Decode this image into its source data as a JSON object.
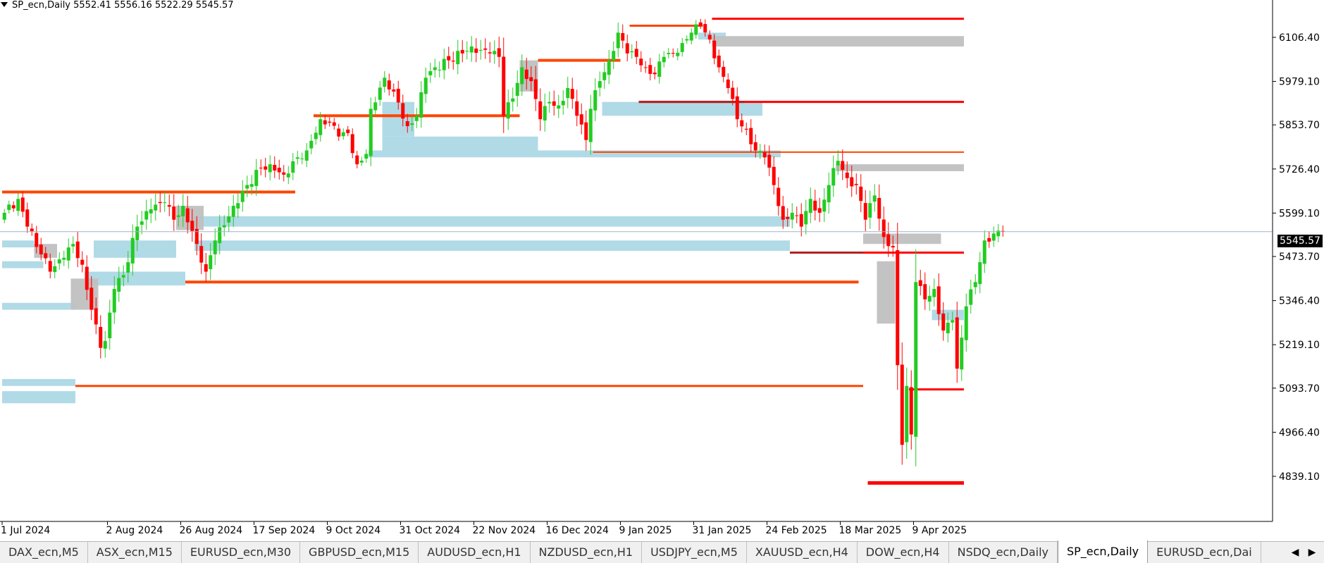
{
  "title_bar": {
    "text": "SP_ecn,Daily  5552.41 5556.16 5522.29 5545.57"
  },
  "current_price": {
    "label": "5545.57",
    "value": 5545.57
  },
  "colors": {
    "bull": "#22cc22",
    "bear": "#ff0000",
    "demand_zone": "#add8e6",
    "neutral_zone": "#c0c0c0",
    "level_orange": "#ff4500",
    "level_red": "#ff0000",
    "level_darkred": "#b22222",
    "price_line": "#a0b4c8",
    "grid_axis": "#000000"
  },
  "chart_data": {
    "type": "candlestick",
    "y_axis_ticks": [
      "6106.40",
      "5979.10",
      "5853.70",
      "5726.40",
      "5599.10",
      "5473.70",
      "5346.40",
      "5219.10",
      "5093.70",
      "4966.40",
      "4839.10"
    ],
    "ylim": [
      4800,
      6180
    ],
    "x_axis_ticks": [
      {
        "label": "1 Jul 2024",
        "index": 0
      },
      {
        "label": "2 Aug 2024",
        "index": 23
      },
      {
        "label": "26 Aug 2024",
        "index": 39
      },
      {
        "label": "17 Sep 2024",
        "index": 55
      },
      {
        "label": "9 Oct 2024",
        "index": 71
      },
      {
        "label": "31 Oct 2024",
        "index": 87
      },
      {
        "label": "22 Nov 2024",
        "index": 103
      },
      {
        "label": "16 Dec 2024",
        "index": 119
      },
      {
        "label": "9 Jan 2025",
        "index": 135
      },
      {
        "label": "31 Jan 2025",
        "index": 151
      },
      {
        "label": "24 Feb 2025",
        "index": 167
      },
      {
        "label": "18 Mar 2025",
        "index": 183
      },
      {
        "label": "9 Apr 2025",
        "index": 199
      }
    ],
    "total_bars": 225,
    "close_anchors": [
      [
        0,
        5600
      ],
      [
        3,
        5640
      ],
      [
        5,
        5560
      ],
      [
        8,
        5480
      ],
      [
        10,
        5430
      ],
      [
        13,
        5470
      ],
      [
        15,
        5510
      ],
      [
        17,
        5450
      ],
      [
        19,
        5320
      ],
      [
        21,
        5210
      ],
      [
        22,
        5230
      ],
      [
        24,
        5380
      ],
      [
        26,
        5420
      ],
      [
        29,
        5560
      ],
      [
        32,
        5610
      ],
      [
        35,
        5630
      ],
      [
        37,
        5580
      ],
      [
        39,
        5620
      ],
      [
        42,
        5510
      ],
      [
        44,
        5430
      ],
      [
        46,
        5520
      ],
      [
        50,
        5620
      ],
      [
        53,
        5680
      ],
      [
        56,
        5730
      ],
      [
        58,
        5740
      ],
      [
        61,
        5710
      ],
      [
        64,
        5760
      ],
      [
        66,
        5780
      ],
      [
        69,
        5870
      ],
      [
        71,
        5860
      ],
      [
        73,
        5820
      ],
      [
        75,
        5830
      ],
      [
        77,
        5740
      ],
      [
        79,
        5770
      ],
      [
        80,
        5900
      ],
      [
        83,
        5990
      ],
      [
        85,
        5950
      ],
      [
        88,
        5850
      ],
      [
        90,
        5880
      ],
      [
        92,
        5990
      ],
      [
        94,
        6020
      ],
      [
        97,
        6040
      ],
      [
        100,
        6060
      ],
      [
        102,
        6080
      ],
      [
        104,
        6070
      ],
      [
        106,
        6060
      ],
      [
        108,
        6050
      ],
      [
        109,
        5880
      ],
      [
        111,
        5930
      ],
      [
        113,
        6020
      ],
      [
        115,
        5980
      ],
      [
        117,
        5870
      ],
      [
        119,
        5920
      ],
      [
        121,
        5910
      ],
      [
        123,
        5960
      ],
      [
        125,
        5880
      ],
      [
        127,
        5810
      ],
      [
        128,
        5900
      ],
      [
        130,
        5980
      ],
      [
        132,
        6040
      ],
      [
        134,
        6120
      ],
      [
        136,
        6060
      ],
      [
        138,
        6050
      ],
      [
        140,
        6020
      ],
      [
        142,
        6000
      ],
      [
        144,
        6050
      ],
      [
        146,
        6060
      ],
      [
        148,
        6090
      ],
      [
        150,
        6120
      ],
      [
        152,
        6140
      ],
      [
        154,
        6100
      ],
      [
        156,
        6020
      ],
      [
        158,
        5960
      ],
      [
        160,
        5870
      ],
      [
        162,
        5840
      ],
      [
        164,
        5780
      ],
      [
        166,
        5760
      ],
      [
        168,
        5680
      ],
      [
        170,
        5580
      ],
      [
        172,
        5600
      ],
      [
        174,
        5560
      ],
      [
        176,
        5640
      ],
      [
        178,
        5600
      ],
      [
        180,
        5680
      ],
      [
        182,
        5750
      ],
      [
        184,
        5700
      ],
      [
        186,
        5680
      ],
      [
        188,
        5580
      ],
      [
        190,
        5650
      ],
      [
        192,
        5530
      ],
      [
        194,
        5500
      ],
      [
        195,
        5160
      ],
      [
        196,
        4930
      ],
      [
        197,
        5100
      ],
      [
        198,
        4960
      ],
      [
        199,
        5400
      ],
      [
        201,
        5350
      ],
      [
        203,
        5380
      ],
      [
        205,
        5260
      ],
      [
        207,
        5290
      ],
      [
        208,
        5150
      ],
      [
        210,
        5330
      ],
      [
        212,
        5400
      ],
      [
        214,
        5520
      ],
      [
        216,
        5540
      ],
      [
        218,
        5545.57
      ]
    ],
    "series_colors_note": "green = up candle, red = down candle",
    "zones": [
      {
        "kind": "demand",
        "from": 0,
        "to": 7,
        "low": 5500,
        "high": 5520
      },
      {
        "kind": "demand",
        "from": 0,
        "to": 9,
        "low": 5440,
        "high": 5460
      },
      {
        "kind": "demand",
        "from": 0,
        "to": 16,
        "low": 5320,
        "high": 5340
      },
      {
        "kind": "demand",
        "from": 0,
        "to": 16,
        "low": 5100,
        "high": 5120
      },
      {
        "kind": "demand",
        "from": 0,
        "to": 16,
        "low": 5050,
        "high": 5085
      },
      {
        "kind": "demand",
        "from": 20,
        "to": 38,
        "low": 5470,
        "high": 5520
      },
      {
        "kind": "demand",
        "from": 18,
        "to": 40,
        "low": 5390,
        "high": 5430
      },
      {
        "kind": "demand",
        "from": 42,
        "to": 172,
        "low": 5490,
        "high": 5520
      },
      {
        "kind": "demand",
        "from": 42,
        "to": 172,
        "low": 5560,
        "high": 5590
      },
      {
        "kind": "demand",
        "from": 83,
        "to": 117,
        "low": 5780,
        "high": 5820
      },
      {
        "kind": "demand",
        "from": 83,
        "to": 90,
        "low": 5820,
        "high": 5920
      },
      {
        "kind": "demand",
        "from": 80,
        "to": 170,
        "low": 5760,
        "high": 5780
      },
      {
        "kind": "demand",
        "from": 131,
        "to": 166,
        "low": 5880,
        "high": 5920
      },
      {
        "kind": "demand",
        "from": 152,
        "to": 158,
        "low": 6100,
        "high": 6120
      },
      {
        "kind": "demand",
        "from": 203,
        "to": 210,
        "low": 5290,
        "high": 5320
      },
      {
        "kind": "neutral",
        "from": 7,
        "to": 12,
        "low": 5470,
        "high": 5510
      },
      {
        "kind": "neutral",
        "from": 15,
        "to": 21,
        "low": 5320,
        "high": 5410
      },
      {
        "kind": "neutral",
        "from": 38,
        "to": 44,
        "low": 5550,
        "high": 5620
      },
      {
        "kind": "neutral",
        "from": 113,
        "to": 117,
        "low": 5950,
        "high": 6040
      },
      {
        "kind": "neutral",
        "from": 155,
        "to": 210,
        "low": 6080,
        "high": 6110
      },
      {
        "kind": "neutral",
        "from": 182,
        "to": 210,
        "low": 5720,
        "high": 5740
      },
      {
        "kind": "neutral",
        "from": 188,
        "to": 205,
        "low": 5510,
        "high": 5540
      },
      {
        "kind": "neutral",
        "from": 191,
        "to": 195,
        "low": 5280,
        "high": 5460
      }
    ],
    "levels": [
      {
        "color": "orange",
        "from": 0,
        "to": 64,
        "price": 5660,
        "width": 4
      },
      {
        "color": "orange",
        "from": 68,
        "to": 113,
        "price": 5880,
        "width": 4
      },
      {
        "color": "orange",
        "from": 117,
        "to": 135,
        "price": 6040,
        "width": 4
      },
      {
        "color": "orange",
        "from": 137,
        "to": 153,
        "price": 6140,
        "width": 3
      },
      {
        "color": "orange",
        "from": 129,
        "to": 210,
        "price": 5775,
        "width": 2
      },
      {
        "color": "orange",
        "from": 40,
        "to": 187,
        "price": 5400,
        "width": 4
      },
      {
        "color": "orange",
        "from": 16,
        "to": 188,
        "price": 5100,
        "width": 3
      },
      {
        "color": "red",
        "from": 155,
        "to": 210,
        "price": 6160,
        "width": 3
      },
      {
        "color": "red",
        "from": 139,
        "to": 210,
        "price": 5920,
        "width": 3
      },
      {
        "color": "darkred",
        "from": 139,
        "to": 162,
        "price": 5920,
        "width": 3
      },
      {
        "color": "darkred",
        "from": 172,
        "to": 203,
        "price": 5485,
        "width": 3
      },
      {
        "color": "red",
        "from": 188,
        "to": 210,
        "price": 5485,
        "width": 3
      },
      {
        "color": "red",
        "from": 198,
        "to": 210,
        "price": 5090,
        "width": 3
      },
      {
        "color": "red",
        "from": 189,
        "to": 210,
        "price": 4820,
        "width": 5
      }
    ]
  },
  "tabs": [
    {
      "label": "DAX_ecn,M5",
      "active": false
    },
    {
      "label": "ASX_ecn,M15",
      "active": false
    },
    {
      "label": "EURUSD_ecn,M30",
      "active": false
    },
    {
      "label": "GBPUSD_ecn,M15",
      "active": false
    },
    {
      "label": "AUDUSD_ecn,H1",
      "active": false
    },
    {
      "label": "NZDUSD_ecn,H1",
      "active": false
    },
    {
      "label": "USDJPY_ecn,M5",
      "active": false
    },
    {
      "label": "XAUUSD_ecn,H4",
      "active": false
    },
    {
      "label": "DOW_ecn,H4",
      "active": false
    },
    {
      "label": "NSDQ_ecn,Daily",
      "active": false
    },
    {
      "label": "SP_ecn,Daily",
      "active": true
    },
    {
      "label": "EURUSD_ecn,Dai",
      "active": false
    }
  ],
  "tab_scroll": {
    "left": "◀",
    "right": "▶"
  }
}
